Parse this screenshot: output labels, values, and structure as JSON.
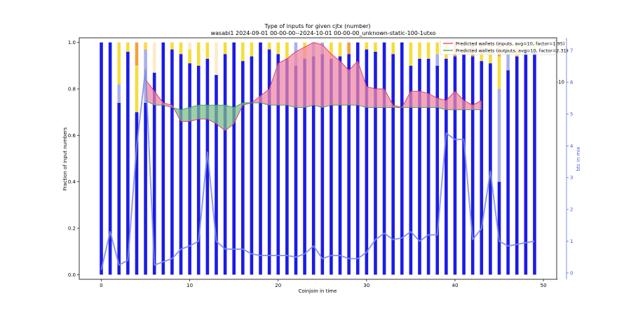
{
  "chart_data": {
    "type": "bar",
    "title": "Type of inputs for given cjtx (number)",
    "subtitle": "wasabi1 2024-09-01 00-00-00--2024-10-01 00-00-00_unknown-static-100-1utxo",
    "xlabel": "Coinjoin in time",
    "ylabel": "Fraction of input numbers",
    "ylabel_right": "btc in mix",
    "xlim": [
      -2.5,
      51.5
    ],
    "ylim": [
      -0.02,
      1.02
    ],
    "ylim_right": [
      -0.2,
      7.4
    ],
    "xticks": [
      "0",
      "10",
      "20",
      "30",
      "40",
      "50"
    ],
    "yticks": [
      "0.0",
      "0.2",
      "0.4",
      "0.6",
      "0.8",
      "1.0"
    ],
    "yticks_right": [
      "0",
      "1",
      "2",
      "3",
      "4",
      "5",
      "6",
      "7"
    ],
    "secondary_right_tick": "10",
    "colors": {
      "fresh": "#1b1be6",
      "remix": "#aab0ee",
      "yellow": "#f7dc3c",
      "orange": "#f0a23a",
      "cream": "#fcebc8",
      "btc_line": "#7b8be6",
      "inputs_line": "#e0305a",
      "inputs_fill": "#f08aa6",
      "outputs_line": "#3c9a4c",
      "outputs_fill": "#7ec08a"
    },
    "x": [
      0,
      1,
      2,
      3,
      4,
      5,
      6,
      7,
      8,
      9,
      10,
      11,
      12,
      13,
      14,
      15,
      16,
      17,
      18,
      19,
      20,
      21,
      22,
      23,
      24,
      25,
      26,
      27,
      28,
      29,
      30,
      31,
      32,
      33,
      34,
      35,
      36,
      37,
      38,
      39,
      40,
      41,
      42,
      43,
      44,
      45,
      46,
      47,
      48,
      49
    ],
    "stacks": {
      "fresh": [
        1.0,
        1.0,
        0.74,
        0.96,
        0.7,
        0.74,
        0.87,
        1.0,
        0.97,
        0.95,
        0.91,
        0.9,
        0.93,
        0.86,
        0.95,
        1.0,
        0.92,
        0.94,
        1.0,
        0.97,
        0.95,
        0.93,
        0.9,
        0.93,
        0.94,
        0.95,
        0.93,
        0.94,
        0.95,
        1.0,
        0.97,
        0.96,
        1.0,
        0.95,
        1.0,
        0.9,
        0.93,
        0.93,
        0.9,
        0.93,
        0.94,
        0.95,
        0.94,
        0.92,
        0.91,
        0.4,
        0.88,
        0.94,
        0.97,
        0.96
      ],
      "remix": [
        0.0,
        0.0,
        0.08,
        0.0,
        0.0,
        0.23,
        0.0,
        0.0,
        0.0,
        0.0,
        0.0,
        0.0,
        0.0,
        0.0,
        0.0,
        0.0,
        0.0,
        0.0,
        0.0,
        0.0,
        0.0,
        0.0,
        0.1,
        0.0,
        0.06,
        0.05,
        0.0,
        0.0,
        0.0,
        0.0,
        0.0,
        0.0,
        0.0,
        0.0,
        0.0,
        0.0,
        0.0,
        0.0,
        0.05,
        0.0,
        0.0,
        0.0,
        0.0,
        0.0,
        0.0,
        0.4,
        0.07,
        0.0,
        0.0,
        0.0
      ],
      "yellow": [
        0.0,
        0.0,
        0.18,
        0.04,
        0.2,
        0.03,
        0.0,
        0.0,
        0.03,
        0.05,
        0.06,
        0.1,
        0.07,
        0.0,
        0.05,
        0.0,
        0.08,
        0.06,
        0.0,
        0.03,
        0.05,
        0.07,
        0.0,
        0.07,
        0.0,
        0.0,
        0.07,
        0.06,
        0.0,
        0.0,
        0.03,
        0.04,
        0.0,
        0.05,
        0.0,
        0.1,
        0.07,
        0.07,
        0.05,
        0.07,
        0.0,
        0.05,
        0.0,
        0.03,
        0.09,
        0.14,
        0.05,
        0.06,
        0.03,
        0.04
      ],
      "orange": [
        0.0,
        0.0,
        0.0,
        0.0,
        0.1,
        0.0,
        0.0,
        0.0,
        0.0,
        0.0,
        0.0,
        0.0,
        0.0,
        0.0,
        0.0,
        0.0,
        0.0,
        0.0,
        0.0,
        0.0,
        0.0,
        0.0,
        0.0,
        0.0,
        0.0,
        0.0,
        0.0,
        0.0,
        0.05,
        0.0,
        0.0,
        0.0,
        0.0,
        0.0,
        0.0,
        0.0,
        0.0,
        0.0,
        0.0,
        0.0,
        0.06,
        0.0,
        0.06,
        0.05,
        0.0,
        0.06,
        0.0,
        0.0,
        0.0,
        0.0
      ],
      "cream": [
        0.0,
        0.0,
        0.0,
        0.0,
        0.0,
        0.0,
        0.13,
        0.0,
        0.0,
        0.0,
        0.03,
        0.0,
        0.0,
        0.14,
        0.0,
        0.0,
        0.0,
        0.0,
        0.0,
        0.0,
        0.0,
        0.0,
        0.0,
        0.0,
        0.0,
        0.0,
        0.0,
        0.0,
        0.0,
        0.0,
        0.0,
        0.0,
        0.0,
        0.0,
        0.0,
        0.0,
        0.0,
        0.0,
        0.0,
        0.0,
        0.0,
        0.0,
        0.0,
        0.0,
        0.0,
        0.0,
        0.0,
        0.0,
        0.0,
        0.0
      ]
    },
    "btc_in_mix": [
      0.1,
      1.3,
      0.25,
      0.4,
      4.0,
      6.4,
      0.25,
      0.35,
      0.45,
      0.75,
      0.85,
      1.0,
      3.8,
      1.0,
      0.75,
      0.75,
      0.75,
      0.6,
      0.55,
      0.55,
      0.55,
      0.55,
      0.5,
      0.6,
      0.85,
      0.45,
      0.55,
      0.55,
      0.45,
      0.45,
      0.65,
      1.05,
      1.25,
      1.05,
      1.1,
      1.3,
      1.0,
      1.2,
      1.2,
      4.4,
      4.2,
      4.2,
      1.05,
      1.4,
      3.2,
      1.0,
      0.85,
      0.9,
      0.95,
      1.0
    ],
    "series": [
      {
        "name": "Predicted wallets (inputs, avg=10, factor=1.95)",
        "x": [
          5,
          6,
          7,
          8,
          9,
          10,
          11,
          12,
          13,
          14,
          15,
          16,
          17,
          18,
          19,
          20,
          21,
          22,
          23,
          24,
          25,
          26,
          27,
          28,
          29,
          30,
          31,
          32,
          33,
          34,
          35,
          36,
          37,
          38,
          39,
          40,
          41,
          42,
          43
        ],
        "values": [
          0.84,
          0.79,
          0.74,
          0.73,
          0.66,
          0.66,
          0.67,
          0.67,
          0.65,
          0.62,
          0.65,
          0.73,
          0.74,
          0.77,
          0.8,
          0.91,
          0.93,
          0.96,
          0.98,
          1.0,
          0.99,
          0.95,
          0.92,
          0.88,
          0.92,
          0.81,
          0.8,
          0.8,
          0.73,
          0.72,
          0.79,
          0.79,
          0.78,
          0.76,
          0.75,
          0.79,
          0.75,
          0.73,
          0.75
        ]
      },
      {
        "name": "Predicted wallets (outputs, avg=10, factor=2.31)",
        "x": [
          5,
          6,
          7,
          8,
          9,
          10,
          11,
          12,
          13,
          14,
          15,
          16,
          17,
          18,
          19,
          20,
          21,
          22,
          23,
          24,
          25,
          26,
          27,
          28,
          29,
          30,
          31,
          32,
          33,
          34,
          35,
          36,
          37,
          38,
          39,
          40,
          41,
          42,
          43
        ],
        "values": [
          0.75,
          0.73,
          0.73,
          0.72,
          0.71,
          0.72,
          0.73,
          0.73,
          0.73,
          0.73,
          0.72,
          0.74,
          0.74,
          0.74,
          0.73,
          0.73,
          0.73,
          0.72,
          0.72,
          0.73,
          0.72,
          0.73,
          0.73,
          0.73,
          0.73,
          0.72,
          0.72,
          0.72,
          0.72,
          0.72,
          0.72,
          0.72,
          0.72,
          0.72,
          0.71,
          0.71,
          0.71,
          0.71,
          0.71
        ]
      }
    ],
    "legend_position": "top-right",
    "grid": false
  }
}
